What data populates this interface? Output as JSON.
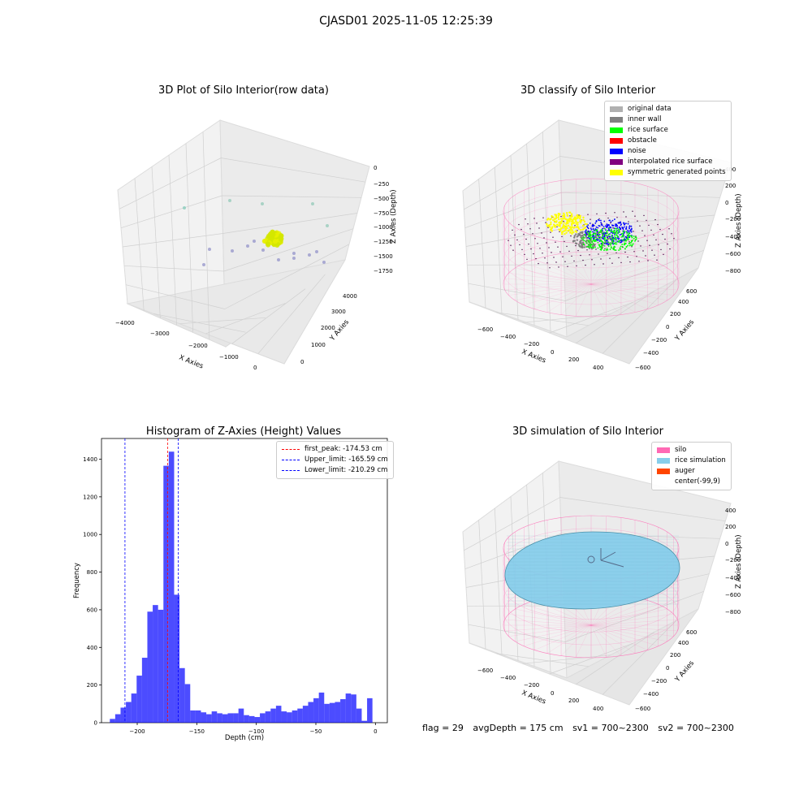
{
  "suptitle": "CJASD01 2025-11-05 12:25:39",
  "panels": {
    "raw": {
      "title": "3D Plot of Silo Interior(row data)",
      "xlabel": "X Axies",
      "ylabel": "Y Axies",
      "zlabel": "Z Axies (Depth)",
      "xticks": [
        "−4000",
        "−3000",
        "−2000",
        "−1000",
        "0"
      ],
      "yticks": [
        "0",
        "1000",
        "2000",
        "3000",
        "4000"
      ],
      "zticks": [
        "0",
        "−250",
        "−500",
        "−750",
        "−1000",
        "−1250",
        "−1500",
        "−1750"
      ]
    },
    "classify": {
      "title": "3D classify of Silo Interior",
      "xlabel": "X Axies",
      "ylabel": "Y Axies",
      "zlabel": "Z Axies (Depth)",
      "xticks": [
        "−600",
        "−400",
        "−200",
        "0",
        "200",
        "400"
      ],
      "yticks": [
        "−600",
        "−400",
        "−200",
        "0",
        "200",
        "400",
        "600"
      ],
      "zticks": [
        "400",
        "200",
        "0",
        "−200",
        "−400",
        "−600",
        "−800"
      ],
      "legend": [
        {
          "label": "original data",
          "color": "#b0b0b0"
        },
        {
          "label": "inner wall",
          "color": "#808080"
        },
        {
          "label": "rice surface",
          "color": "#00ff00"
        },
        {
          "label": "obstacle",
          "color": "#ff0000"
        },
        {
          "label": "noise",
          "color": "#0000ff"
        },
        {
          "label": "interpolated rice surface",
          "color": "#800080"
        },
        {
          "label": "symmetric generated points",
          "color": "#ffff00"
        }
      ]
    },
    "simulation": {
      "title": "3D simulation of Silo Interior",
      "xlabel": "X Axies",
      "ylabel": "Y Axies",
      "zlabel": "Z Axies (Depth)",
      "xticks": [
        "−600",
        "−400",
        "−200",
        "0",
        "200",
        "400"
      ],
      "yticks": [
        "−600",
        "−400",
        "−200",
        "0",
        "200",
        "400",
        "600"
      ],
      "zticks": [
        "400",
        "200",
        "0",
        "−200",
        "−400",
        "−600",
        "−800"
      ],
      "legend": [
        {
          "label": "silo",
          "color": "#ff69b4"
        },
        {
          "label": "rice simulation",
          "color": "#87ceeb"
        },
        {
          "label": "auger",
          "color": "#ff4500"
        },
        {
          "label": "center(-99,9)",
          "color": ""
        }
      ]
    }
  },
  "footer": {
    "flag": "flag = 29",
    "avg": "avgDepth = 175 cm",
    "sv1": "sv1 = 700~2300",
    "sv2": "sv2 = 700~2300"
  },
  "chart_data": [
    {
      "type": "histogram",
      "title": "Histogram of Z-Axies (Height) Values",
      "xlabel": "Depth (cm)",
      "ylabel": "Frequency",
      "xlim": [
        -230,
        10
      ],
      "ylim": [
        0,
        1510
      ],
      "xticks": [
        -200,
        -150,
        -100,
        -50,
        0
      ],
      "yticks": [
        0,
        200,
        400,
        600,
        800,
        1000,
        1200,
        1400
      ],
      "bin_start": -223,
      "bin_width": 4.5,
      "color": "#0000ff",
      "values": [
        20,
        45,
        80,
        110,
        155,
        250,
        345,
        590,
        625,
        600,
        1365,
        1440,
        680,
        290,
        205,
        65,
        65,
        55,
        45,
        60,
        50,
        45,
        50,
        50,
        75,
        40,
        35,
        30,
        50,
        60,
        75,
        90,
        60,
        55,
        65,
        75,
        90,
        110,
        130,
        160,
        100,
        105,
        110,
        125,
        155,
        150,
        75,
        10,
        130
      ],
      "lines": [
        {
          "label": "first_peak: -174.53 cm",
          "x": -174.53,
          "color": "#ff0000"
        },
        {
          "label": "Upper_limit: -165.59 cm",
          "x": -165.59,
          "color": "#0000ff"
        },
        {
          "label": "Lower_limit: -210.29 cm",
          "x": -210.29,
          "color": "#0000ff"
        }
      ]
    }
  ]
}
